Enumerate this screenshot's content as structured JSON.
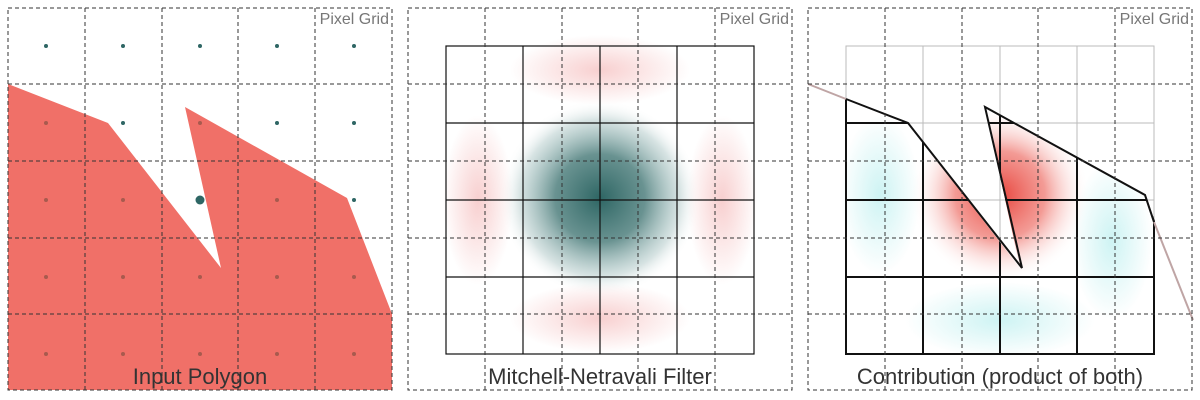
{
  "panels": [
    {
      "title": "Input Polygon",
      "corner_label": "Pixel Grid"
    },
    {
      "title": "Mitchell-Netravali Filter",
      "corner_label": "Pixel Grid"
    },
    {
      "title": "Contribution (product of both)",
      "corner_label": "Pixel Grid"
    }
  ],
  "colors": {
    "polygon_fill": "#f07068",
    "filter_positive": "#2e6664",
    "filter_negative": "#f2a8a8",
    "contribution_positive": "#e8463e",
    "contribution_negative": "#c8f2f2",
    "pixel_grid": "#222222",
    "sample_dot_outside": "#2e6664",
    "sample_dot_inside": "#a85a4e"
  }
}
